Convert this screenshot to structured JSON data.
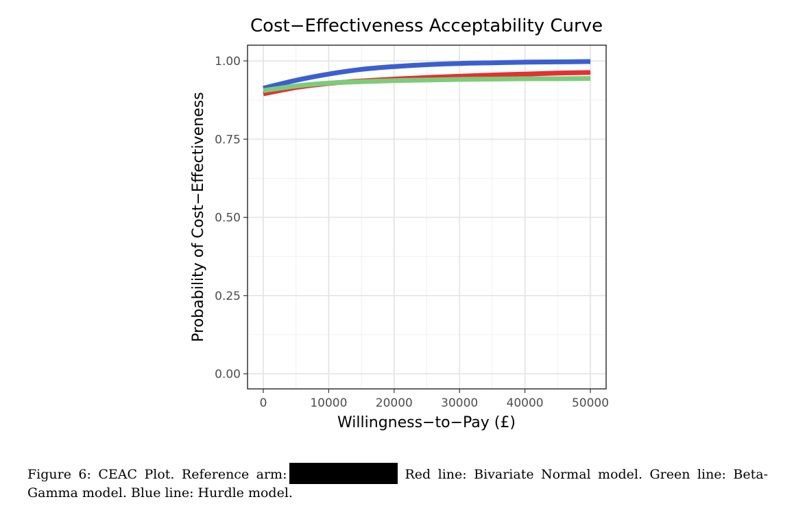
{
  "chart_data": {
    "type": "line",
    "title": "Cost−Effectiveness Acceptability Curve",
    "xlabel": "Willingness−to−Pay (£)",
    "ylabel": "Probability of Cost−Effectiveness",
    "xlim": [
      0,
      50000
    ],
    "ylim": [
      0,
      1
    ],
    "x_ticks": [
      0,
      10000,
      20000,
      30000,
      40000,
      50000
    ],
    "x_tick_labels": [
      "0",
      "10000",
      "20000",
      "30000",
      "40000",
      "50000"
    ],
    "y_ticks": [
      0,
      0.25,
      0.5,
      0.75,
      1.0
    ],
    "y_tick_labels": [
      "0.00",
      "0.25",
      "0.50",
      "0.75",
      "1.00"
    ],
    "grid": true,
    "legend": "none",
    "x": [
      0,
      5000,
      10000,
      15000,
      20000,
      25000,
      30000,
      35000,
      40000,
      45000,
      50000
    ],
    "series": [
      {
        "color": "#e53030",
        "values": [
          0.895,
          0.915,
          0.928,
          0.936,
          0.942,
          0.947,
          0.951,
          0.955,
          0.958,
          0.961,
          0.963
        ]
      },
      {
        "color": "#7ccc7c",
        "values": [
          0.905,
          0.92,
          0.929,
          0.934,
          0.937,
          0.939,
          0.941,
          0.942,
          0.943,
          0.943,
          0.944
        ]
      },
      {
        "color": "#3a5fd0",
        "values": [
          0.913,
          0.938,
          0.958,
          0.973,
          0.982,
          0.988,
          0.992,
          0.994,
          0.996,
          0.997,
          0.998
        ]
      }
    ]
  },
  "caption": {
    "text_before": "Figure 6: CEAC Plot. Reference arm:",
    "text_after": "Red line: Bivariate Normal model. Green line: Beta-Gamma model. Blue line: Hurdle model."
  }
}
